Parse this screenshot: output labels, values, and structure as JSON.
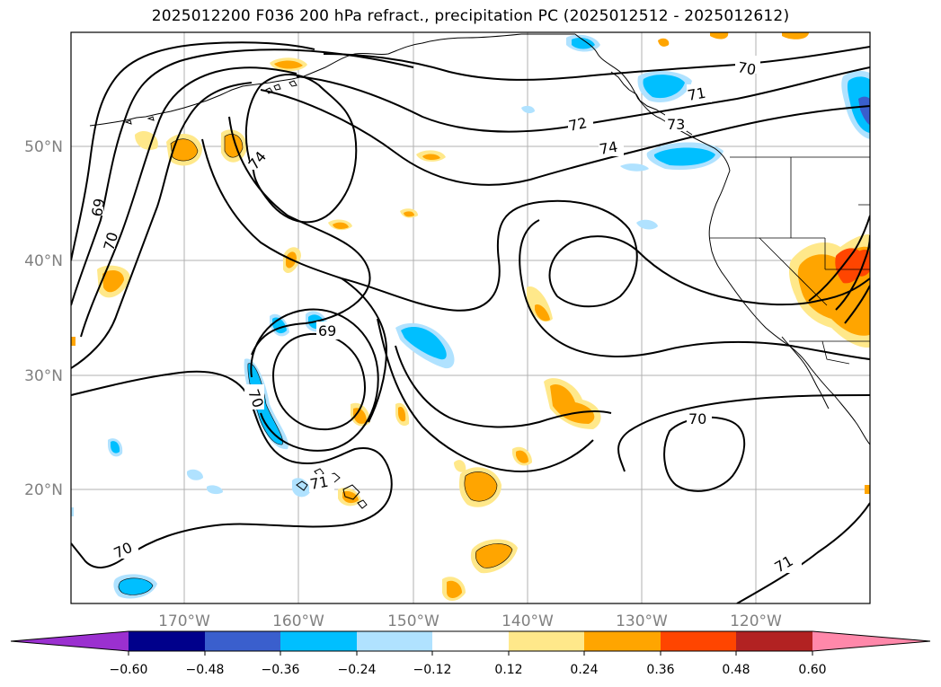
{
  "title": "2025012200 F036 200 hPa refract., precipitation PC (2025012512 - 2025012612)",
  "latitude_labels": [
    "50°N",
    "40°N",
    "30°N",
    "20°N"
  ],
  "longitude_labels": [
    "170°W",
    "160°W",
    "150°W",
    "140°W",
    "130°W",
    "120°W"
  ],
  "colorbar": {
    "tick_labels": [
      "−0.60",
      "−0.48",
      "−0.36",
      "−0.24",
      "−0.12",
      "0.12",
      "0.24",
      "0.36",
      "0.48",
      "0.60"
    ],
    "colors": [
      "#9b30d0",
      "#00008b",
      "#3a5fcd",
      "#00bfff",
      "#b0e2ff",
      "#ffffff",
      "#ffe88a",
      "#ffa500",
      "#ff4500",
      "#b22222",
      "#ff88aa"
    ]
  },
  "contour_labels": [
    "69",
    "70",
    "74",
    "72",
    "71",
    "73",
    "74",
    "69",
    "70",
    "70",
    "71",
    "70",
    "71",
    "70"
  ],
  "colors": {
    "precip_pos_light": "#ffe88a",
    "precip_pos": "#ffa500",
    "precip_pos_strong": "#ff4500",
    "precip_neg_light": "#b0e2ff",
    "precip_neg": "#00bfff",
    "precip_neg_strong": "#3a5fcd"
  }
}
